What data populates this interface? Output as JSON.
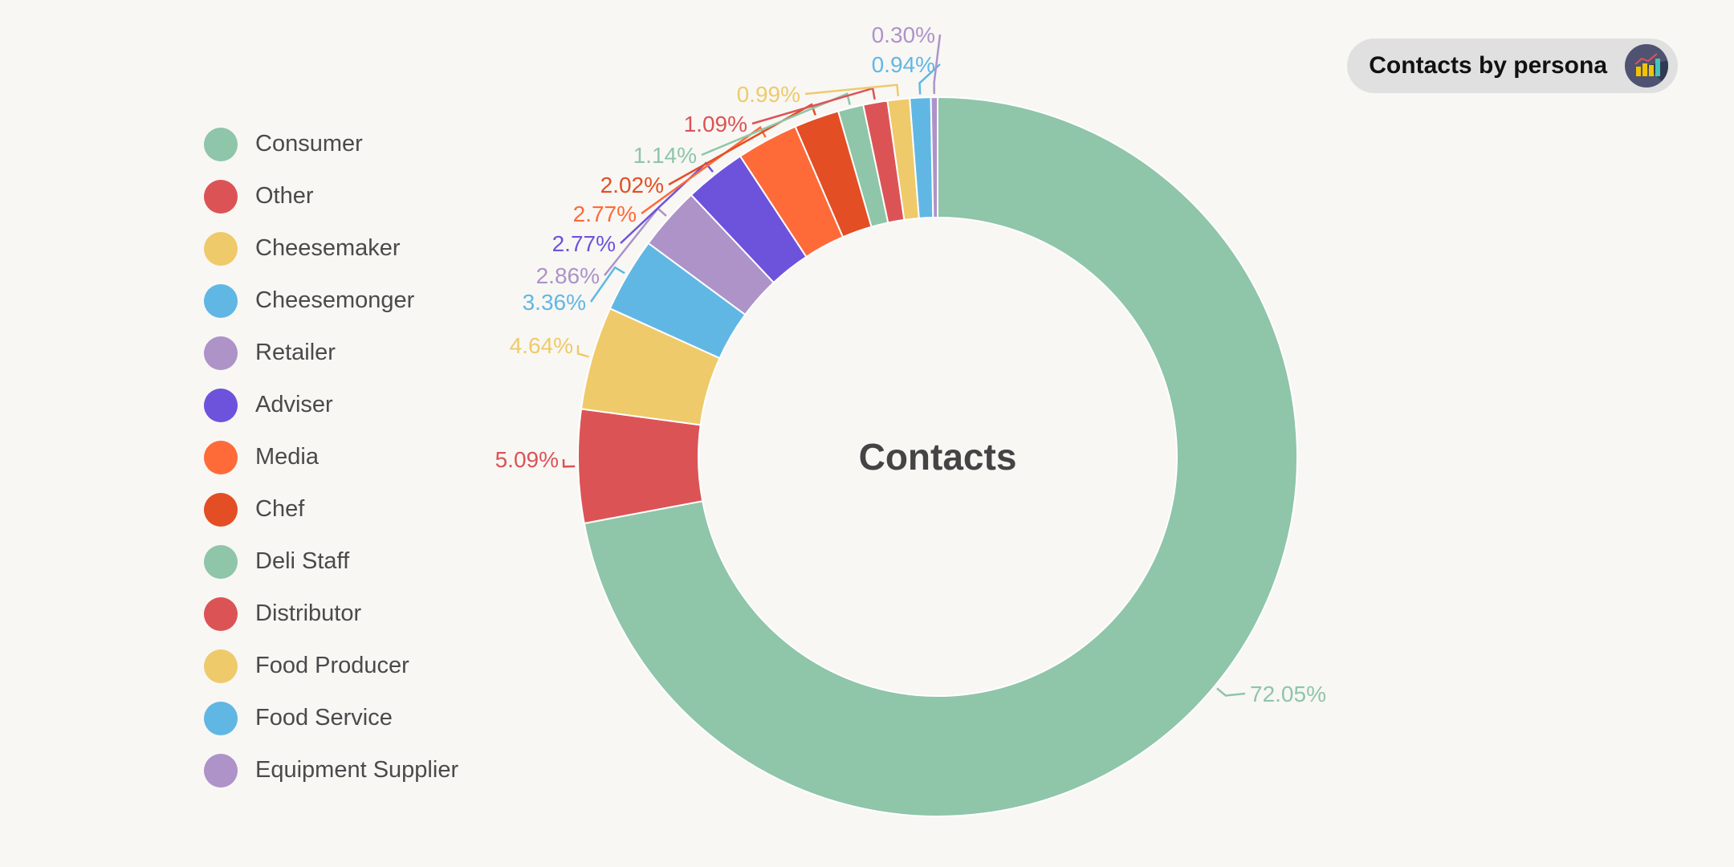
{
  "badge": {
    "title": "Contacts by persona",
    "icon": "chart-icon"
  },
  "chart_data": {
    "type": "pie",
    "subtype": "donut",
    "center_label": "Contacts",
    "legend_position": "left",
    "series": [
      {
        "name": "Consumer",
        "value": 72.05,
        "label": "72.05%",
        "color": "#8fc5a9"
      },
      {
        "name": "Other",
        "value": 5.09,
        "label": "5.09%",
        "color": "#dc5356"
      },
      {
        "name": "Cheesemaker",
        "value": 4.64,
        "label": "4.64%",
        "color": "#efca6a"
      },
      {
        "name": "Cheesemonger",
        "value": 3.36,
        "label": "3.36%",
        "color": "#61b7e4"
      },
      {
        "name": "Retailer",
        "value": 2.86,
        "label": "2.86%",
        "color": "#ad93c8"
      },
      {
        "name": "Adviser",
        "value": 2.77,
        "label": "2.77%",
        "color": "#6d53dc"
      },
      {
        "name": "Media",
        "value": 2.77,
        "label": "2.77%",
        "color": "#ff6a39"
      },
      {
        "name": "Chef",
        "value": 2.02,
        "label": "2.02%",
        "color": "#e34e25"
      },
      {
        "name": "Deli Staff",
        "value": 1.14,
        "label": "1.14%",
        "color": "#8fc5a9"
      },
      {
        "name": "Distributor",
        "value": 1.09,
        "label": "1.09%",
        "color": "#dc5356"
      },
      {
        "name": "Food Producer",
        "value": 0.99,
        "label": "0.99%",
        "color": "#efca6a"
      },
      {
        "name": "Food Service",
        "value": 0.94,
        "label": "0.94%",
        "color": "#61b7e4"
      },
      {
        "name": "Equipment Supplier",
        "value": 0.3,
        "label": "0.30%",
        "color": "#ad93c8"
      }
    ]
  }
}
